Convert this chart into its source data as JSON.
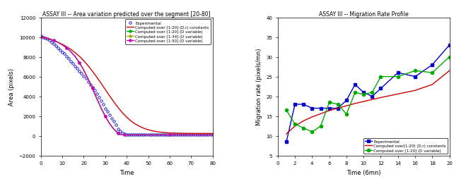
{
  "left_title": "ASSAY III -- Area variation predicted over the segment [20-80]",
  "left_xlabel": "Time",
  "left_ylabel": "Area (pixels)",
  "left_xlim": [
    0,
    80
  ],
  "left_ylim": [
    -2000,
    12000
  ],
  "left_yticks": [
    -2000,
    0,
    2000,
    4000,
    6000,
    8000,
    10000,
    12000
  ],
  "left_xticks": [
    0,
    10,
    20,
    30,
    40,
    50,
    60,
    70,
    80
  ],
  "right_title": "ASSAY III -- Migration Rate Profile",
  "right_xlabel": "Time (6mn)",
  "right_ylabel": "Migration rate (pixels/mn)",
  "right_xlim": [
    0,
    20
  ],
  "right_ylim": [
    5,
    40
  ],
  "right_yticks": [
    5,
    10,
    15,
    20,
    25,
    30,
    35,
    40
  ],
  "right_xticks": [
    0,
    2,
    4,
    6,
    8,
    10,
    12,
    14,
    16,
    18,
    20
  ],
  "exp_area_x": [
    0,
    1,
    2,
    3,
    4,
    5,
    6,
    7,
    8,
    9,
    10,
    11,
    12,
    13,
    14,
    15,
    16,
    17,
    18,
    19,
    20,
    21,
    22,
    23,
    24,
    25,
    26,
    27,
    28,
    29,
    30,
    31,
    32,
    33,
    34,
    35,
    36,
    37,
    38,
    39,
    40,
    41,
    42,
    43,
    44,
    45,
    46,
    47,
    48,
    49,
    50,
    51,
    52,
    53,
    54,
    55,
    56,
    57,
    58,
    59,
    60,
    61,
    62,
    63,
    64,
    65,
    66,
    67,
    68,
    69,
    70,
    71,
    72,
    73,
    74,
    75,
    76,
    77,
    78,
    79,
    80
  ],
  "exp_area_y": [
    10100,
    10000,
    9900,
    9800,
    9650,
    9500,
    9300,
    9100,
    8900,
    8700,
    8500,
    8300,
    8050,
    7800,
    7550,
    7300,
    7050,
    6800,
    6550,
    6300,
    6050,
    5800,
    5500,
    5200,
    4900,
    4600,
    4250,
    3900,
    3550,
    3200,
    2800,
    2500,
    2150,
    1800,
    1450,
    1100,
    700,
    450,
    300,
    200,
    150,
    130,
    120,
    120,
    120,
    120,
    120,
    120,
    120,
    120,
    120,
    120,
    120,
    120,
    120,
    120,
    120,
    120,
    120,
    120,
    120,
    120,
    120,
    120,
    120,
    120,
    120,
    120,
    120,
    120,
    120,
    120,
    120,
    120,
    120,
    120,
    120,
    120,
    120,
    120,
    120
  ],
  "comp_const_area_x": [
    0,
    2,
    4,
    6,
    8,
    10,
    12,
    14,
    16,
    18,
    20,
    22,
    24,
    26,
    28,
    30,
    32,
    34,
    36,
    38,
    40,
    42,
    44,
    46,
    48,
    50,
    52,
    54,
    56,
    58,
    60,
    62,
    64,
    66,
    68,
    70,
    72,
    74,
    76,
    78,
    80
  ],
  "comp_const_area_y": [
    10000,
    9900,
    9780,
    9640,
    9470,
    9270,
    9030,
    8750,
    8420,
    8040,
    7600,
    7100,
    6550,
    5960,
    5340,
    4700,
    4060,
    3440,
    2860,
    2340,
    1890,
    1510,
    1200,
    960,
    770,
    620,
    510,
    430,
    370,
    330,
    300,
    285,
    270,
    260,
    255,
    250,
    248,
    246,
    245,
    244,
    243
  ],
  "comp_var20_area_x": [
    0,
    2,
    4,
    6,
    8,
    10,
    12,
    14,
    16,
    18,
    20,
    22,
    24,
    26,
    28,
    30,
    32,
    34,
    36,
    37,
    38,
    39,
    40,
    50,
    60,
    70,
    80
  ],
  "comp_var20_area_y": [
    10050,
    9950,
    9820,
    9660,
    9460,
    9210,
    8900,
    8510,
    8020,
    7400,
    6650,
    5770,
    4800,
    3800,
    2850,
    1980,
    1250,
    680,
    280,
    150,
    120,
    110,
    105,
    100,
    100,
    100,
    100
  ],
  "comp_var34_area_x": [
    0,
    2,
    4,
    6,
    8,
    10,
    12,
    14,
    16,
    18,
    20,
    22,
    24,
    26,
    28,
    30,
    32,
    34,
    36,
    37,
    38,
    39,
    40,
    50,
    60,
    70,
    80
  ],
  "comp_var34_area_y": [
    10050,
    9950,
    9820,
    9660,
    9460,
    9210,
    8900,
    8510,
    8020,
    7400,
    6650,
    5770,
    4800,
    3800,
    2850,
    1980,
    1250,
    680,
    280,
    145,
    115,
    108,
    103,
    98,
    98,
    98,
    98
  ],
  "comp_var50_area_x": [
    0,
    2,
    4,
    6,
    8,
    10,
    12,
    14,
    16,
    18,
    20,
    22,
    24,
    26,
    28,
    30,
    32,
    34,
    36,
    37,
    38,
    39,
    40,
    50,
    60,
    70,
    80
  ],
  "comp_var50_area_y": [
    10050,
    9950,
    9820,
    9660,
    9460,
    9210,
    8900,
    8510,
    8020,
    7400,
    6650,
    5770,
    4800,
    3800,
    2850,
    1980,
    1250,
    680,
    280,
    145,
    113,
    106,
    101,
    96,
    96,
    96,
    96
  ],
  "exp_mig_x": [
    1,
    2,
    3,
    4,
    5,
    6,
    7,
    8,
    9,
    10,
    11,
    12,
    14,
    16,
    18,
    20
  ],
  "exp_mig_y": [
    8.5,
    18,
    18,
    17,
    17,
    17,
    17,
    19,
    23,
    21,
    20,
    22,
    26,
    25,
    28,
    33
  ],
  "comp_const_mig_x": [
    1,
    2,
    3,
    4,
    5,
    6,
    7,
    8,
    9,
    10,
    11,
    12,
    14,
    16,
    18,
    20
  ],
  "comp_const_mig_y": [
    10.5,
    12.5,
    13.8,
    14.8,
    15.6,
    16.4,
    17.0,
    17.6,
    18.2,
    18.7,
    19.2,
    19.7,
    20.6,
    21.5,
    23.0,
    26.5
  ],
  "comp_var20_mig_x": [
    1,
    2,
    3,
    4,
    5,
    6,
    7,
    8,
    9,
    10,
    11,
    12,
    14,
    16,
    18,
    20
  ],
  "comp_var20_mig_y": [
    16.5,
    13.0,
    12.0,
    11.0,
    12.5,
    18.5,
    18.0,
    15.5,
    21.0,
    20.5,
    21.0,
    25.0,
    25.0,
    26.5,
    26.0,
    30.0
  ],
  "color_exp": "#0000cc",
  "color_const": "#cc0000",
  "color_var20": "#00aa00",
  "color_var34": "#aaaa00",
  "color_var50": "#cc00cc",
  "bg_color": "#ffffff"
}
